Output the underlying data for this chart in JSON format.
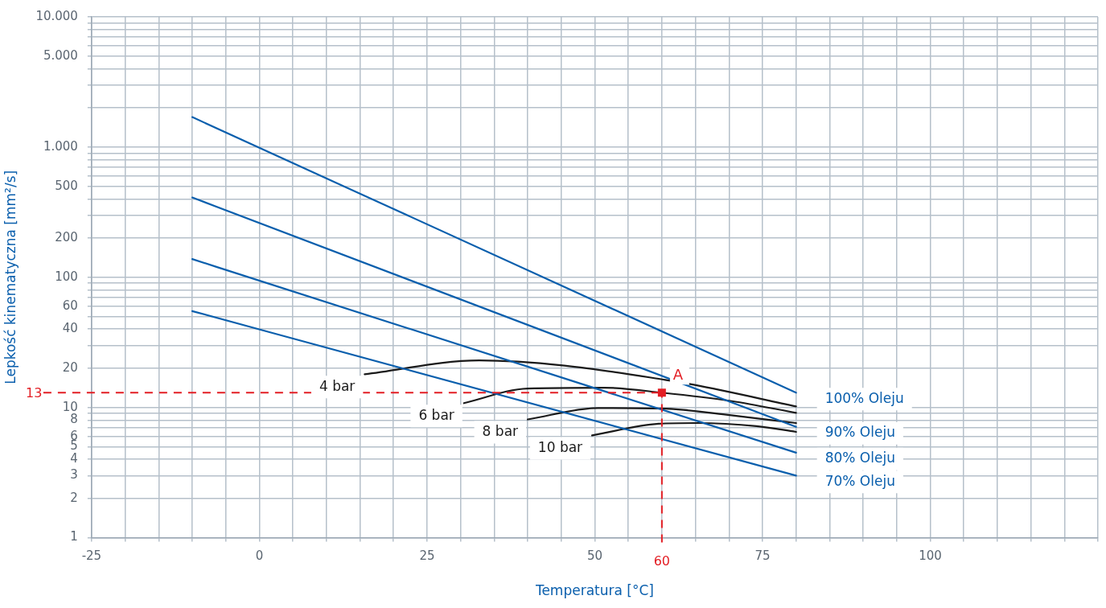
{
  "chart_data": {
    "type": "line",
    "xlabel": "Temperatura [°C]",
    "ylabel": "Lepkość kinematyczna [mm²/s]",
    "xlim": [
      -25,
      125
    ],
    "xticks": [
      -25,
      {
        "value": -20,
        "label": null
      },
      {
        "value": -15,
        "label": null
      },
      {
        "value": -10,
        "label": null
      },
      {
        "value": -5,
        "label": null
      },
      0,
      {
        "value": 5,
        "label": null
      },
      {
        "value": 10,
        "label": null
      },
      {
        "value": 15,
        "label": null
      },
      {
        "value": 20,
        "label": null
      },
      25,
      {
        "value": 30,
        "label": null
      },
      {
        "value": 35,
        "label": null
      },
      {
        "value": 40,
        "label": null
      },
      {
        "value": 45,
        "label": null
      },
      50,
      {
        "value": 55,
        "label": null
      },
      {
        "value": 60,
        "label": null
      },
      {
        "value": 65,
        "label": null
      },
      {
        "value": 70,
        "label": null
      },
      75,
      {
        "value": 80,
        "label": null
      },
      {
        "value": 85,
        "label": null
      },
      {
        "value": 90,
        "label": null
      },
      {
        "value": 95,
        "label": null
      },
      100,
      {
        "value": 105,
        "label": null
      },
      {
        "value": 110,
        "label": null
      },
      {
        "value": 115,
        "label": null
      },
      {
        "value": 120,
        "label": null
      },
      {
        "value": 125,
        "label": null
      }
    ],
    "ylim": [
      1,
      10000
    ],
    "yticks": [
      1,
      2,
      3,
      4,
      5,
      6,
      {
        "value": 7,
        "label": null
      },
      8,
      {
        "value": 9,
        "label": null
      },
      10,
      20,
      {
        "value": 30,
        "label": null
      },
      40,
      {
        "value": 50,
        "label": null
      },
      60,
      {
        "value": 70,
        "label": null
      },
      {
        "value": 80,
        "label": null
      },
      {
        "value": 90,
        "label": null
      },
      100,
      200,
      {
        "value": 300,
        "label": null
      },
      {
        "value": 400,
        "label": null
      },
      500,
      {
        "value": 600,
        "label": null
      },
      {
        "value": 700,
        "label": null
      },
      {
        "value": 800,
        "label": null
      },
      {
        "value": 900,
        "label": null
      },
      {
        "value": 1000,
        "label": "1.000"
      },
      {
        "value": 2000,
        "label": null
      },
      {
        "value": 3000,
        "label": null
      },
      {
        "value": 4000,
        "label": null
      },
      {
        "value": 5000,
        "label": "5.000"
      },
      {
        "value": 6000,
        "label": null
      },
      {
        "value": 7000,
        "label": null
      },
      {
        "value": 8000,
        "label": null
      },
      {
        "value": 9000,
        "label": null
      },
      {
        "value": 10000,
        "label": "10.000"
      }
    ],
    "log": "y",
    "grid": true,
    "legend": false,
    "marker": "none",
    "line_style": "solid",
    "series": [
      {
        "name": "100% Oleju",
        "color": "#0a5fad",
        "x": [
          -10,
          80
        ],
        "values": [
          1700,
          13
        ]
      },
      {
        "name": "90% Oleju",
        "color": "#0a5fad",
        "x": [
          -10,
          80
        ],
        "values": [
          410,
          7.1
        ]
      },
      {
        "name": "80% Oleju",
        "color": "#0a5fad",
        "x": [
          -10,
          80
        ],
        "values": [
          138,
          4.5
        ]
      },
      {
        "name": "70% Oleju",
        "color": "#0a5fad",
        "x": [
          -10,
          80
        ],
        "values": [
          55,
          3
        ]
      },
      {
        "name": "4 bar",
        "color": "#1a1a1a",
        "x": [
          15.7,
          32.8,
          45.5,
          60.5,
          64.6,
          80
        ],
        "values": [
          18,
          23,
          21,
          16.3,
          15,
          10.2
        ]
      },
      {
        "name": "6 bar",
        "color": "#1a1a1a",
        "x": [
          30.5,
          40,
          51.4,
          60,
          70.4,
          80
        ],
        "values": [
          10.8,
          14,
          14.2,
          13,
          11.2,
          9.1
        ]
      },
      {
        "name": "8 bar",
        "color": "#1a1a1a",
        "x": [
          40,
          50.5,
          60.5,
          69.6,
          80
        ],
        "values": [
          8.1,
          9.9,
          9.8,
          8.8,
          7.6
        ]
      },
      {
        "name": "10 bar",
        "color": "#1a1a1a",
        "x": [
          49.6,
          59.5,
          65.1,
          74.1,
          80
        ],
        "values": [
          6.1,
          7.5,
          7.6,
          7.2,
          6.5
        ]
      }
    ],
    "ref_lines": [
      {
        "axis": "y",
        "value": 13,
        "label": "13",
        "color": "#e31e24",
        "line_style": "dashed"
      },
      {
        "axis": "x",
        "value": 60,
        "label": "60",
        "color": "#e31e24",
        "line_style": "dashed"
      }
    ],
    "annotations": [
      {
        "text": "A",
        "x": 60,
        "y": 13
      }
    ]
  }
}
